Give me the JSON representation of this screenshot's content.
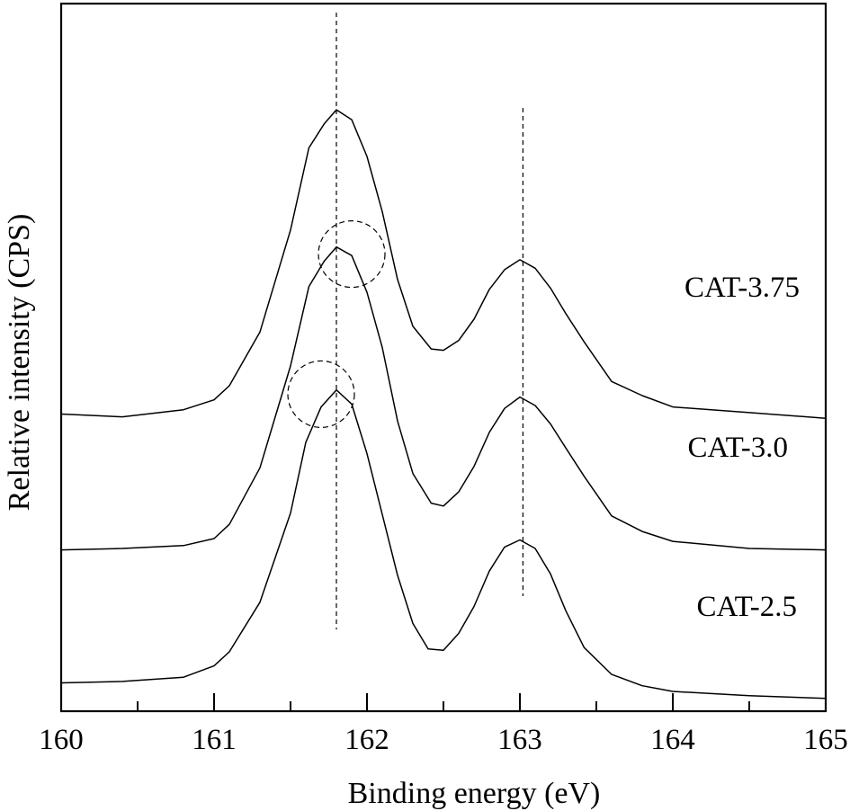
{
  "chart_data": {
    "type": "line",
    "xlabel": "Binding energy (eV)",
    "ylabel": "Relative intensity (CPS)",
    "xlim": [
      160,
      165
    ],
    "ylim": [
      0,
      5
    ],
    "xticks": [
      "160",
      "161",
      "162",
      "163",
      "164",
      "165"
    ],
    "minor_ticks": [
      160.5,
      161.5,
      162.5,
      163.5,
      164.5
    ],
    "reference_lines": [
      161.8,
      163.02
    ],
    "highlight_circles": [
      {
        "x": 161.9,
        "y": 3.23
      },
      {
        "x": 161.7,
        "y": 2.24
      }
    ],
    "series": [
      {
        "name": "CAT-3.75",
        "x": [
          160.0,
          160.4,
          160.8,
          161.0,
          161.1,
          161.3,
          161.5,
          161.62,
          161.72,
          161.8,
          161.9,
          162.0,
          162.1,
          162.2,
          162.3,
          162.42,
          162.5,
          162.6,
          162.7,
          162.8,
          162.9,
          163.0,
          163.1,
          163.2,
          163.3,
          163.42,
          163.6,
          163.8,
          164.0,
          164.5,
          165.0
        ],
        "y": [
          2.1,
          2.08,
          2.13,
          2.2,
          2.3,
          2.68,
          3.4,
          3.98,
          4.15,
          4.25,
          4.18,
          3.92,
          3.53,
          3.05,
          2.72,
          2.56,
          2.55,
          2.62,
          2.77,
          2.98,
          3.12,
          3.19,
          3.13,
          2.99,
          2.81,
          2.61,
          2.33,
          2.23,
          2.15,
          2.11,
          2.07
        ]
      },
      {
        "name": "CAT-3.0",
        "x": [
          160.0,
          160.4,
          160.8,
          161.0,
          161.1,
          161.3,
          161.5,
          161.62,
          161.72,
          161.8,
          161.9,
          162.0,
          162.1,
          162.2,
          162.3,
          162.42,
          162.5,
          162.6,
          162.7,
          162.8,
          162.9,
          163.0,
          163.1,
          163.2,
          163.3,
          163.42,
          163.6,
          163.8,
          164.0,
          164.5,
          165.0
        ],
        "y": [
          1.14,
          1.15,
          1.17,
          1.22,
          1.32,
          1.72,
          2.44,
          3.0,
          3.18,
          3.28,
          3.22,
          2.96,
          2.57,
          2.05,
          1.68,
          1.47,
          1.45,
          1.55,
          1.73,
          1.97,
          2.14,
          2.22,
          2.16,
          2.03,
          1.86,
          1.66,
          1.38,
          1.27,
          1.2,
          1.15,
          1.14
        ]
      },
      {
        "name": "CAT-2.5",
        "x": [
          160.0,
          160.4,
          160.8,
          161.0,
          161.1,
          161.3,
          161.5,
          161.6,
          161.7,
          161.8,
          161.9,
          162.0,
          162.1,
          162.2,
          162.3,
          162.4,
          162.5,
          162.6,
          162.7,
          162.8,
          162.9,
          163.0,
          163.1,
          163.2,
          163.3,
          163.42,
          163.6,
          163.8,
          164.0,
          164.5,
          165.0
        ],
        "y": [
          0.2,
          0.21,
          0.24,
          0.32,
          0.42,
          0.77,
          1.4,
          1.9,
          2.15,
          2.27,
          2.17,
          1.82,
          1.39,
          0.96,
          0.62,
          0.44,
          0.43,
          0.55,
          0.74,
          0.99,
          1.16,
          1.21,
          1.15,
          0.97,
          0.71,
          0.45,
          0.26,
          0.18,
          0.14,
          0.11,
          0.09
        ]
      }
    ]
  }
}
